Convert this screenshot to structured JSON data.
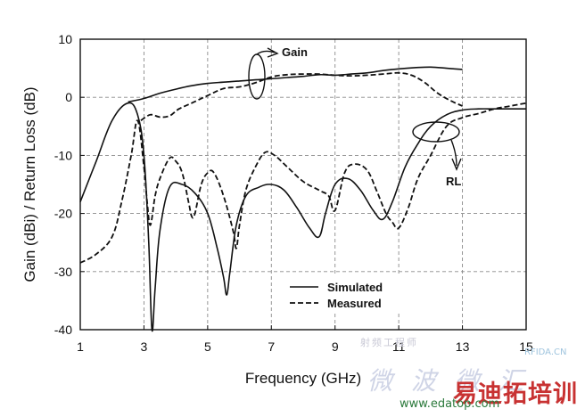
{
  "chart_data": {
    "type": "line",
    "xlabel": "Frequency (GHz)",
    "ylabel": "Gain (dBi) / Return Loss (dB)",
    "xlim": [
      1,
      15
    ],
    "ylim": [
      -40,
      10
    ],
    "xticks": [
      1,
      3,
      5,
      7,
      9,
      11,
      13,
      15
    ],
    "yticks": [
      10,
      0,
      -10,
      -20,
      -30,
      -40
    ],
    "grid": true,
    "legend_position": "bottom-center",
    "series": [
      {
        "name": "Simulated",
        "group": "Gain",
        "style": "solid",
        "x": [
          2.5,
          3.0,
          3.5,
          4.0,
          4.5,
          5.0,
          5.5,
          6.0,
          6.5,
          7.0,
          7.5,
          8.0,
          8.5,
          9.0,
          9.5,
          10.0,
          10.5,
          11.0,
          11.5,
          12.0,
          12.5,
          13.0
        ],
        "values": [
          -0.8,
          -0.2,
          0.7,
          1.4,
          2.0,
          2.4,
          2.6,
          2.8,
          3.0,
          3.2,
          3.4,
          3.6,
          3.9,
          3.8,
          4.0,
          4.2,
          4.6,
          4.9,
          5.1,
          5.2,
          5.0,
          4.8
        ]
      },
      {
        "name": "Measured",
        "group": "Gain",
        "style": "dashed",
        "x": [
          2.9,
          3.2,
          3.5,
          3.8,
          4.1,
          4.5,
          5.0,
          5.5,
          6.0,
          6.5,
          7.0,
          7.5,
          8.0,
          8.5,
          9.0,
          9.5,
          10.0,
          10.5,
          11.0,
          11.4,
          11.8,
          12.2,
          12.6,
          13.0
        ],
        "values": [
          -4.0,
          -3.0,
          -3.4,
          -3.2,
          -2.0,
          -1.0,
          0.3,
          1.5,
          1.8,
          2.5,
          3.5,
          3.9,
          4.0,
          4.0,
          3.8,
          3.7,
          3.8,
          4.0,
          4.2,
          3.8,
          2.6,
          0.8,
          -0.5,
          -1.5
        ]
      },
      {
        "name": "Simulated",
        "group": "RL",
        "style": "solid",
        "x": [
          1.0,
          1.5,
          2.0,
          2.5,
          2.8,
          3.0,
          3.15,
          3.25,
          3.35,
          3.5,
          3.8,
          4.2,
          4.6,
          5.0,
          5.3,
          5.5,
          5.6,
          5.7,
          5.9,
          6.2,
          6.6,
          7.0,
          7.4,
          7.8,
          8.2,
          8.5,
          8.7,
          9.0,
          9.4,
          9.8,
          10.2,
          10.5,
          10.8,
          11.2,
          11.6,
          12.0,
          12.5,
          13.0,
          13.5,
          14.0,
          14.5,
          15.0
        ],
        "values": [
          -18,
          -11,
          -4,
          -1,
          -3,
          -10,
          -25,
          -40,
          -33,
          -23,
          -15.5,
          -15,
          -16.5,
          -20,
          -26,
          -31,
          -34,
          -30,
          -22,
          -17,
          -15.5,
          -15,
          -16,
          -19,
          -22.5,
          -24,
          -20,
          -15,
          -14,
          -16,
          -19.5,
          -21,
          -18,
          -12,
          -8,
          -5,
          -3,
          -2.2,
          -2,
          -2,
          -2,
          -2
        ]
      },
      {
        "name": "Measured",
        "group": "RL",
        "style": "dashed",
        "x": [
          1.0,
          1.5,
          2.0,
          2.3,
          2.6,
          2.8,
          3.0,
          3.1,
          3.2,
          3.35,
          3.5,
          3.8,
          4.0,
          4.2,
          4.4,
          4.5,
          4.6,
          4.8,
          5.0,
          5.2,
          5.5,
          5.8,
          5.9,
          6.0,
          6.2,
          6.5,
          6.8,
          7.1,
          7.5,
          8.0,
          8.5,
          8.8,
          9.0,
          9.3,
          9.6,
          10.0,
          10.3,
          10.6,
          10.8,
          11.0,
          11.3,
          11.6,
          12.0,
          12.5,
          13.0,
          13.5,
          14.0,
          14.5,
          15.0
        ],
        "values": [
          -28.5,
          -27,
          -24,
          -18,
          -10,
          -4,
          -12,
          -18,
          -22,
          -17,
          -14,
          -10.5,
          -11,
          -13,
          -18,
          -20.5,
          -20,
          -15,
          -13,
          -13,
          -17,
          -23,
          -26,
          -22,
          -16,
          -12,
          -9.5,
          -10,
          -12,
          -14.5,
          -16,
          -17,
          -19.5,
          -13,
          -11.5,
          -12.5,
          -16,
          -20,
          -21.5,
          -22.5,
          -19,
          -14,
          -10,
          -5,
          -3.5,
          -2.8,
          -2,
          -1.5,
          -1
        ]
      }
    ],
    "annotations": [
      "Gain",
      "RL"
    ],
    "legend": [
      {
        "label": "Simulated",
        "style": "solid"
      },
      {
        "label": "Measured",
        "style": "dashed"
      }
    ]
  },
  "watermark": {
    "line1": "射频工程师",
    "line2": "微 波 微 汇",
    "rf": "RFIDA.CN",
    "logo": "易迪拓培训",
    "url": "www.edatop.com"
  }
}
